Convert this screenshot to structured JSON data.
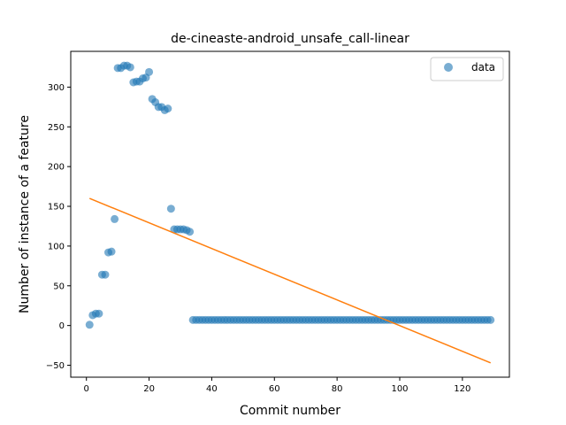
{
  "chart_data": {
    "type": "scatter",
    "title": "de-cineaste-android_unsafe_call-linear",
    "xlabel": "Commit number",
    "ylabel": "Number of instance of a feature",
    "xlim": [
      -5,
      135
    ],
    "ylim": [
      -65,
      345
    ],
    "xticks": [
      0,
      20,
      40,
      60,
      80,
      100,
      120
    ],
    "yticks": [
      -50,
      0,
      50,
      100,
      150,
      200,
      250,
      300
    ],
    "grid": false,
    "legend_position": "top-right",
    "series": [
      {
        "name": "data",
        "kind": "points",
        "color": "#1f77b4",
        "points": [
          [
            1,
            1
          ],
          [
            2,
            13
          ],
          [
            3,
            15
          ],
          [
            4,
            15
          ],
          [
            5,
            64
          ],
          [
            6,
            64
          ],
          [
            7,
            92
          ],
          [
            8,
            93
          ],
          [
            9,
            134
          ],
          [
            10,
            324
          ],
          [
            11,
            324
          ],
          [
            12,
            327
          ],
          [
            13,
            327
          ],
          [
            14,
            325
          ],
          [
            15,
            306
          ],
          [
            16,
            307
          ],
          [
            17,
            307
          ],
          [
            18,
            311
          ],
          [
            19,
            312
          ],
          [
            20,
            319
          ],
          [
            21,
            285
          ],
          [
            22,
            281
          ],
          [
            23,
            275
          ],
          [
            24,
            275
          ],
          [
            25,
            271
          ],
          [
            26,
            273
          ],
          [
            27,
            147
          ],
          [
            28,
            121
          ],
          [
            29,
            121
          ],
          [
            30,
            121
          ],
          [
            31,
            121
          ],
          [
            32,
            120
          ],
          [
            33,
            118
          ],
          [
            34,
            7
          ],
          [
            35,
            7
          ],
          [
            36,
            7
          ],
          [
            37,
            7
          ],
          [
            38,
            7
          ],
          [
            39,
            7
          ],
          [
            40,
            7
          ],
          [
            41,
            7
          ],
          [
            42,
            7
          ],
          [
            43,
            7
          ],
          [
            44,
            7
          ],
          [
            45,
            7
          ],
          [
            46,
            7
          ],
          [
            47,
            7
          ],
          [
            48,
            7
          ],
          [
            49,
            7
          ],
          [
            50,
            7
          ],
          [
            51,
            7
          ],
          [
            52,
            7
          ],
          [
            53,
            7
          ],
          [
            54,
            7
          ],
          [
            55,
            7
          ],
          [
            56,
            7
          ],
          [
            57,
            7
          ],
          [
            58,
            7
          ],
          [
            59,
            7
          ],
          [
            60,
            7
          ],
          [
            61,
            7
          ],
          [
            62,
            7
          ],
          [
            63,
            7
          ],
          [
            64,
            7
          ],
          [
            65,
            7
          ],
          [
            66,
            7
          ],
          [
            67,
            7
          ],
          [
            68,
            7
          ],
          [
            69,
            7
          ],
          [
            70,
            7
          ],
          [
            71,
            7
          ],
          [
            72,
            7
          ],
          [
            73,
            7
          ],
          [
            74,
            7
          ],
          [
            75,
            7
          ],
          [
            76,
            7
          ],
          [
            77,
            7
          ],
          [
            78,
            7
          ],
          [
            79,
            7
          ],
          [
            80,
            7
          ],
          [
            81,
            7
          ],
          [
            82,
            7
          ],
          [
            83,
            7
          ],
          [
            84,
            7
          ],
          [
            85,
            7
          ],
          [
            86,
            7
          ],
          [
            87,
            7
          ],
          [
            88,
            7
          ],
          [
            89,
            7
          ],
          [
            90,
            7
          ],
          [
            91,
            7
          ],
          [
            92,
            7
          ],
          [
            93,
            7
          ],
          [
            94,
            7
          ],
          [
            95,
            7
          ],
          [
            96,
            7
          ],
          [
            97,
            7
          ],
          [
            98,
            7
          ],
          [
            99,
            7
          ],
          [
            100,
            7
          ],
          [
            101,
            7
          ],
          [
            102,
            7
          ],
          [
            103,
            7
          ],
          [
            104,
            7
          ],
          [
            105,
            7
          ],
          [
            106,
            7
          ],
          [
            107,
            7
          ],
          [
            108,
            7
          ],
          [
            109,
            7
          ],
          [
            110,
            7
          ],
          [
            111,
            7
          ],
          [
            112,
            7
          ],
          [
            113,
            7
          ],
          [
            114,
            7
          ],
          [
            115,
            7
          ],
          [
            116,
            7
          ],
          [
            117,
            7
          ],
          [
            118,
            7
          ],
          [
            119,
            7
          ],
          [
            120,
            7
          ],
          [
            121,
            7
          ],
          [
            122,
            7
          ],
          [
            123,
            7
          ],
          [
            124,
            7
          ],
          [
            125,
            7
          ],
          [
            126,
            7
          ],
          [
            127,
            7
          ],
          [
            128,
            7
          ],
          [
            129,
            7
          ]
        ]
      },
      {
        "kind": "line",
        "color": "#ff7f0e",
        "points": [
          [
            1,
            160
          ],
          [
            129,
            -47
          ]
        ]
      }
    ]
  }
}
